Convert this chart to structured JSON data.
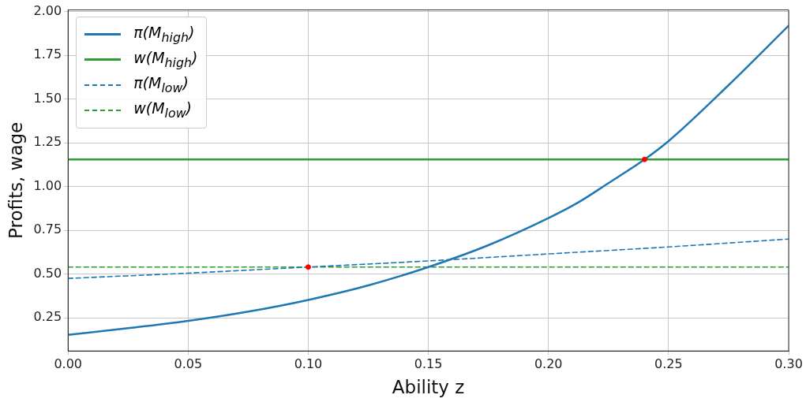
{
  "chart_data": {
    "type": "line",
    "xlabel": "Ability z",
    "ylabel": "Profits, wage",
    "xlim": [
      0,
      0.3
    ],
    "ylim": [
      0.06,
      2.01
    ],
    "xticks": [
      {
        "value": 0,
        "label": "0.00"
      },
      {
        "value": 0.05,
        "label": "0.05"
      },
      {
        "value": 0.1,
        "label": "0.10"
      },
      {
        "value": 0.15,
        "label": "0.15"
      },
      {
        "value": 0.2,
        "label": "0.20"
      },
      {
        "value": 0.25,
        "label": "0.25"
      },
      {
        "value": 0.3,
        "label": "0.30"
      }
    ],
    "yticks": [
      {
        "value": 0.25,
        "label": "0.25"
      },
      {
        "value": 0.5,
        "label": "0.50"
      },
      {
        "value": 0.75,
        "label": "0.75"
      },
      {
        "value": 1,
        "label": "1.00"
      },
      {
        "value": 1.25,
        "label": "1.25"
      },
      {
        "value": 1.5,
        "label": "1.50"
      },
      {
        "value": 1.75,
        "label": "1.75"
      },
      {
        "value": 2,
        "label": "2.00"
      }
    ],
    "grid": true,
    "legend": "top left",
    "series": [
      {
        "name": "π(M$_{high}$)",
        "color": "#1f77b4",
        "line_style": "solid",
        "marker": "none",
        "x": [
          0,
          0.025,
          0.05,
          0.075,
          0.1,
          0.125,
          0.15,
          0.175,
          0.2,
          0.2125,
          0.225,
          0.24,
          0.25,
          0.275,
          0.3
        ],
        "values": [
          0.152,
          0.19,
          0.232,
          0.285,
          0.352,
          0.435,
          0.54,
          0.665,
          0.82,
          0.91,
          1.02,
          1.155,
          1.26,
          1.58,
          1.92
        ]
      },
      {
        "name": "w(M$_{high}$)",
        "color": "#2ca02c",
        "line_style": "solid",
        "marker": "none",
        "x": [
          0,
          0.3
        ],
        "values": [
          1.155,
          1.155
        ]
      },
      {
        "name": "π(M$_{low}$)",
        "color": "#1f77b4",
        "line_style": "dashed",
        "marker": "none",
        "x": [
          0,
          0.05,
          0.1,
          0.15,
          0.2,
          0.25,
          0.3
        ],
        "values": [
          0.475,
          0.505,
          0.54,
          0.575,
          0.615,
          0.655,
          0.7
        ]
      },
      {
        "name": "w(M$_{low}$)",
        "color": "#2ca02c",
        "line_style": "dashed",
        "marker": "none",
        "x": [
          0,
          0.3
        ],
        "values": [
          0.54,
          0.54
        ]
      },
      {
        "type": "scatter",
        "color": "#ff0000",
        "marker": "circle",
        "x": [
          0.1,
          0.24
        ],
        "values": [
          0.54,
          1.155
        ]
      }
    ]
  }
}
